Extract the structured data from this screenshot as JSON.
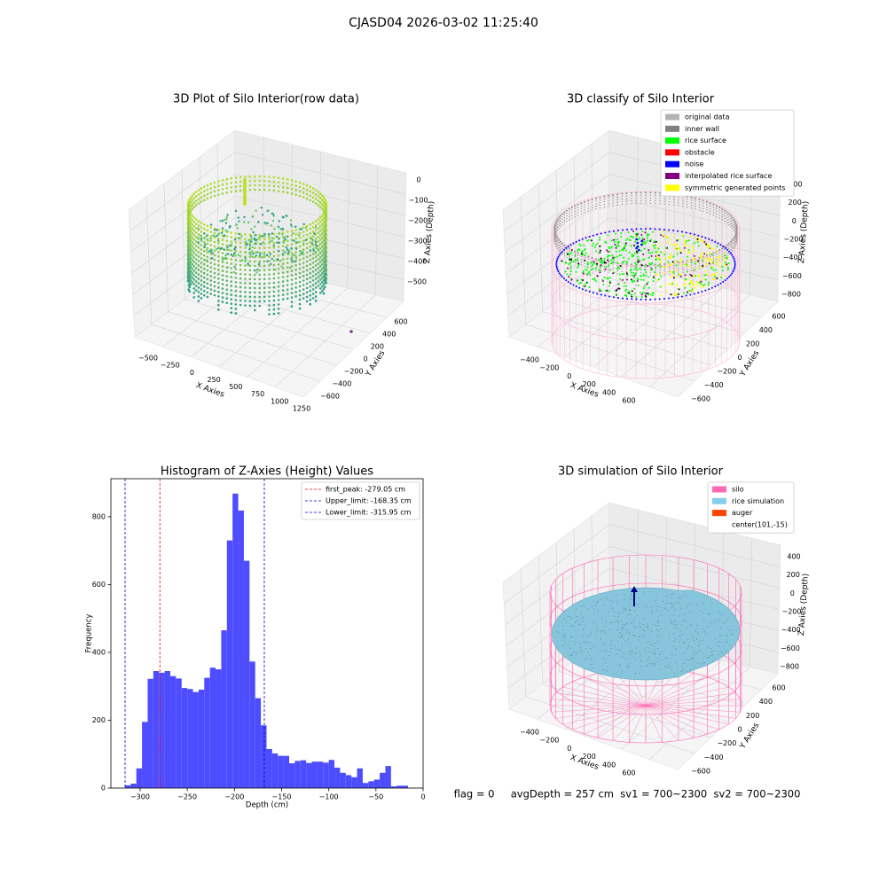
{
  "title": "CJASD04 2026-03-02 11:25:40",
  "chart_data": [
    {
      "type": "scatter3d",
      "title": "3D Plot of Silo Interior(row data)",
      "xlabel": "X Axies",
      "ylabel": "Y Axies",
      "zlabel": "Z Axies (Depth)",
      "xtick_labels": [
        "−500",
        "−250",
        "0",
        "250",
        "500",
        "750",
        "1000",
        "1250"
      ],
      "ytick_labels": [
        "−600",
        "−400",
        "−200",
        "0",
        "200",
        "400",
        "600"
      ],
      "ztick_labels": [
        "0",
        "−100",
        "−200",
        "−300",
        "−400",
        "−500"
      ]
    },
    {
      "type": "scatter3d",
      "title": "3D classify of Silo Interior",
      "xlabel": "X Axies",
      "ylabel": "Y Axies",
      "zlabel": "Z Axies (Depth)",
      "xtick_labels": [
        "−400",
        "−200",
        "0",
        "200",
        "400",
        "600"
      ],
      "ytick_labels": [
        "−600",
        "−400",
        "−200",
        "0",
        "200",
        "400",
        "600"
      ],
      "ztick_labels": [
        "400",
        "200",
        "0",
        "−200",
        "−400",
        "−600",
        "−800"
      ],
      "legend": [
        {
          "name": "original data",
          "color": "#b3b3b3"
        },
        {
          "name": "inner wall",
          "color": "#808080"
        },
        {
          "name": "rice surface",
          "color": "#00ff00"
        },
        {
          "name": "obstacle",
          "color": "#ff0000"
        },
        {
          "name": "noise",
          "color": "#0000ff"
        },
        {
          "name": "interpolated rice surface",
          "color": "#800080"
        },
        {
          "name": "symmetric generated points",
          "color": "#ffff00"
        }
      ]
    },
    {
      "type": "histogram",
      "title": "Histogram of Z-Axies (Height) Values",
      "xlabel": "Depth (cm)",
      "ylabel": "Frequency",
      "color": "#4d4dff",
      "bins": [
        -316,
        -310,
        -304,
        -298,
        -292,
        -286,
        -280,
        -274,
        -268,
        -262,
        -256,
        -250,
        -244,
        -238,
        -232,
        -226,
        -220,
        -214,
        -208,
        -202,
        -196,
        -190,
        -184,
        -178,
        -172,
        -166,
        -160,
        -154,
        -148,
        -142,
        -136,
        -130,
        -124,
        -118,
        -112,
        -106,
        -100,
        -94,
        -88,
        -82,
        -76,
        -70,
        -64,
        -58,
        -52,
        -46,
        -40,
        -34,
        -28,
        -22,
        -16
      ],
      "counts": [
        8,
        13,
        58,
        195,
        322,
        345,
        340,
        345,
        330,
        323,
        295,
        292,
        283,
        290,
        325,
        355,
        350,
        465,
        730,
        868,
        818,
        670,
        373,
        265,
        185,
        115,
        102,
        95,
        95,
        73,
        80,
        82,
        74,
        78,
        78,
        75,
        83,
        60,
        45,
        38,
        32,
        58,
        15,
        20,
        25,
        45,
        65,
        5,
        7,
        7
      ],
      "xlim": [
        -331,
        0
      ],
      "ylim": [
        0,
        912
      ],
      "xticks": [
        {
          "value": -300,
          "label": "−300"
        },
        {
          "value": -250,
          "label": "−250"
        },
        {
          "value": -200,
          "label": "−200"
        },
        {
          "value": -150,
          "label": "−150"
        },
        {
          "value": -100,
          "label": "−100"
        },
        {
          "value": -50,
          "label": "−50"
        },
        0
      ],
      "yticks": [
        0,
        200,
        400,
        600,
        800
      ],
      "vlines": [
        {
          "label": "first_peak: -279.05 cm",
          "value": -279.05,
          "color": "#ff0000"
        },
        {
          "label": "Upper_limit: -168.35 cm",
          "value": -168.35,
          "color": "#0000cc"
        },
        {
          "label": "Lower_limit: -315.95 cm",
          "value": -315.95,
          "color": "#0000cc"
        }
      ],
      "legend_loc": "upper right"
    },
    {
      "type": "surface3d",
      "title": "3D simulation of Silo Interior",
      "xlabel": "X Axies",
      "ylabel": "Y Axies",
      "zlabel": "Z Axies (Depth)",
      "xtick_labels": [
        "−400",
        "−200",
        "0",
        "200",
        "400",
        "600"
      ],
      "ytick_labels": [
        "−600",
        "−400",
        "−200",
        "0",
        "200",
        "400",
        "600"
      ],
      "ztick_labels": [
        "400",
        "200",
        "0",
        "−200",
        "−400",
        "−600",
        "−800"
      ],
      "legend": [
        {
          "name": "silo",
          "color": "#ff69b4"
        },
        {
          "name": "rice simulation",
          "color": "#87ceeb"
        },
        {
          "name": "auger",
          "color": "#ff4500"
        },
        {
          "name": "center(101,-15)",
          "color": null
        }
      ]
    }
  ],
  "footer": "flag = 0     avgDepth = 257 cm  sv1 = 700~2300  sv2 = 700~2300"
}
